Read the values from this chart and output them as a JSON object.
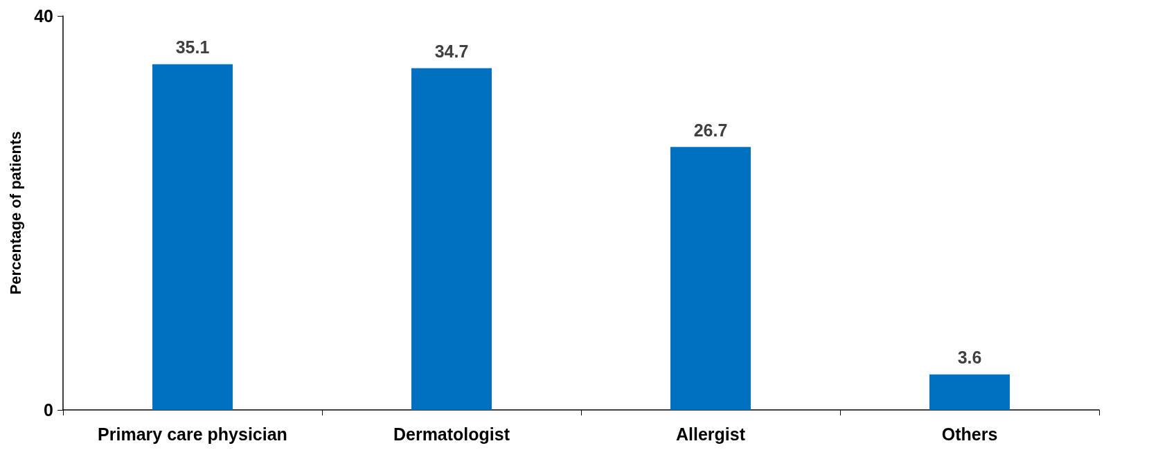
{
  "chart_data": {
    "type": "bar",
    "ylabel": "Percentage of patients",
    "categories": [
      "Primary care physician",
      "Dermatologist",
      "Allergist",
      "Others"
    ],
    "values": [
      35.1,
      34.7,
      26.7,
      3.6
    ],
    "color": "#0070c0",
    "ylim": [
      0,
      40
    ],
    "yticks": [
      0,
      40
    ],
    "grid": false,
    "data_labels": true
  }
}
